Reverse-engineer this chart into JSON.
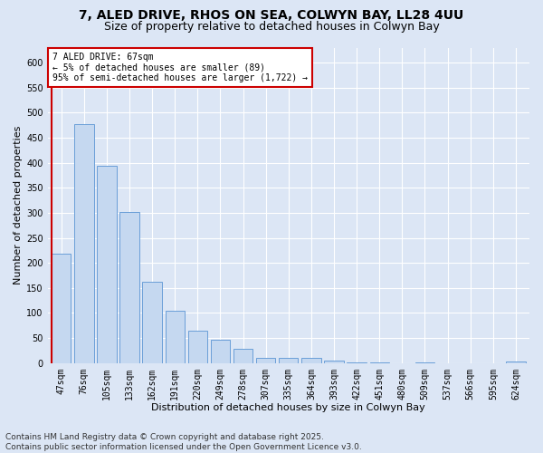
{
  "title_line1": "7, ALED DRIVE, RHOS ON SEA, COLWYN BAY, LL28 4UU",
  "title_line2": "Size of property relative to detached houses in Colwyn Bay",
  "xlabel": "Distribution of detached houses by size in Colwyn Bay",
  "ylabel": "Number of detached properties",
  "categories": [
    "47sqm",
    "76sqm",
    "105sqm",
    "133sqm",
    "162sqm",
    "191sqm",
    "220sqm",
    "249sqm",
    "278sqm",
    "307sqm",
    "335sqm",
    "364sqm",
    "393sqm",
    "422sqm",
    "451sqm",
    "480sqm",
    "509sqm",
    "537sqm",
    "566sqm",
    "595sqm",
    "624sqm"
  ],
  "values": [
    218,
    478,
    394,
    301,
    163,
    105,
    65,
    47,
    29,
    10,
    10,
    10,
    5,
    2,
    2,
    0,
    2,
    0,
    0,
    0,
    3
  ],
  "bar_color": "#c5d8f0",
  "bar_edge_color": "#6a9fd8",
  "annotation_title": "7 ALED DRIVE: 67sqm",
  "annotation_line2": "← 5% of detached houses are smaller (89)",
  "annotation_line3": "95% of semi-detached houses are larger (1,722) →",
  "annotation_box_color": "#ffffff",
  "annotation_box_edge_color": "#cc0000",
  "red_line_color": "#cc0000",
  "ylim": [
    0,
    630
  ],
  "yticks": [
    0,
    50,
    100,
    150,
    200,
    250,
    300,
    350,
    400,
    450,
    500,
    550,
    600
  ],
  "footer_line1": "Contains HM Land Registry data © Crown copyright and database right 2025.",
  "footer_line2": "Contains public sector information licensed under the Open Government Licence v3.0.",
  "background_color": "#dce6f5",
  "plot_background_color": "#dce6f5",
  "title_fontsize": 10,
  "subtitle_fontsize": 9,
  "axis_label_fontsize": 8,
  "tick_fontsize": 7,
  "annotation_fontsize": 7,
  "footer_fontsize": 6.5
}
